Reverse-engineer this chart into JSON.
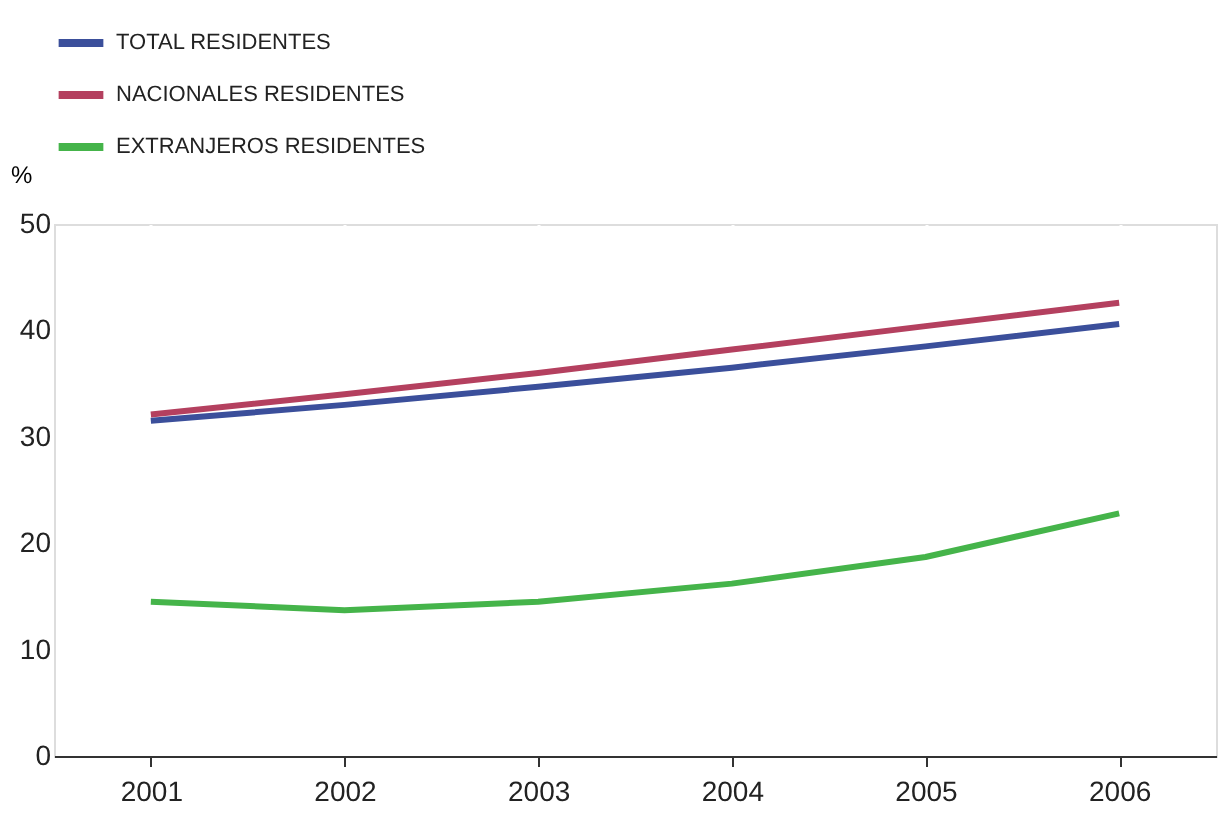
{
  "chart_data": {
    "type": "line",
    "ylabel": "%",
    "categories": [
      "2001",
      "2002",
      "2003",
      "2004",
      "2005",
      "2006"
    ],
    "series": [
      {
        "name": "TOTAL RESIDENTES",
        "color": "#3b4f9b",
        "values": [
          31.5,
          33,
          34.7,
          36.5,
          38.5,
          40.6
        ]
      },
      {
        "name": "NACIONALES RESIDENTES",
        "color": "#b4405f",
        "values": [
          32.1,
          34,
          36,
          38.2,
          40.4,
          42.6
        ]
      },
      {
        "name": "EXTRANJEROS RESIDENTES",
        "color": "#45b44a",
        "values": [
          14.5,
          13.7,
          14.5,
          16.2,
          18.7,
          22.8
        ]
      }
    ],
    "ylim": [
      0,
      50
    ],
    "yticks": [
      0,
      10,
      20,
      30,
      40,
      50
    ],
    "grid": "x",
    "legend": "top left",
    "marker": "none",
    "line_style": "solid"
  }
}
